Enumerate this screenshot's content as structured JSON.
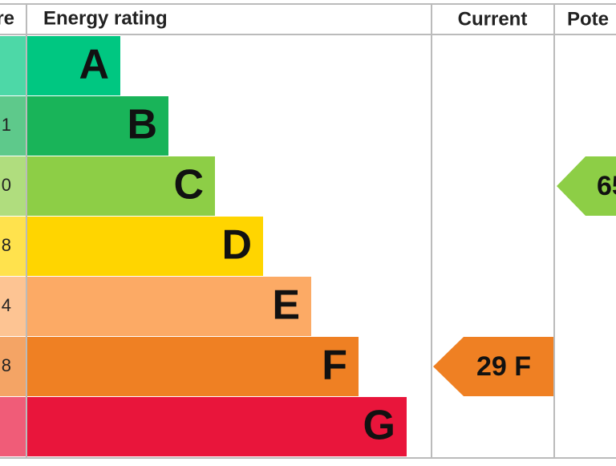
{
  "header": {
    "score": "re",
    "rating": "Energy rating",
    "current": "Current",
    "potential": "Pote"
  },
  "rows": [
    {
      "score": "",
      "band": "A"
    },
    {
      "score": "1",
      "band": "B"
    },
    {
      "score": "0",
      "band": "C"
    },
    {
      "score": "8",
      "band": "D"
    },
    {
      "score": "4",
      "band": "E"
    },
    {
      "score": "8",
      "band": "F"
    },
    {
      "score": "",
      "band": "G"
    }
  ],
  "current": {
    "label": "29 F"
  },
  "potential": {
    "label": "65"
  }
}
